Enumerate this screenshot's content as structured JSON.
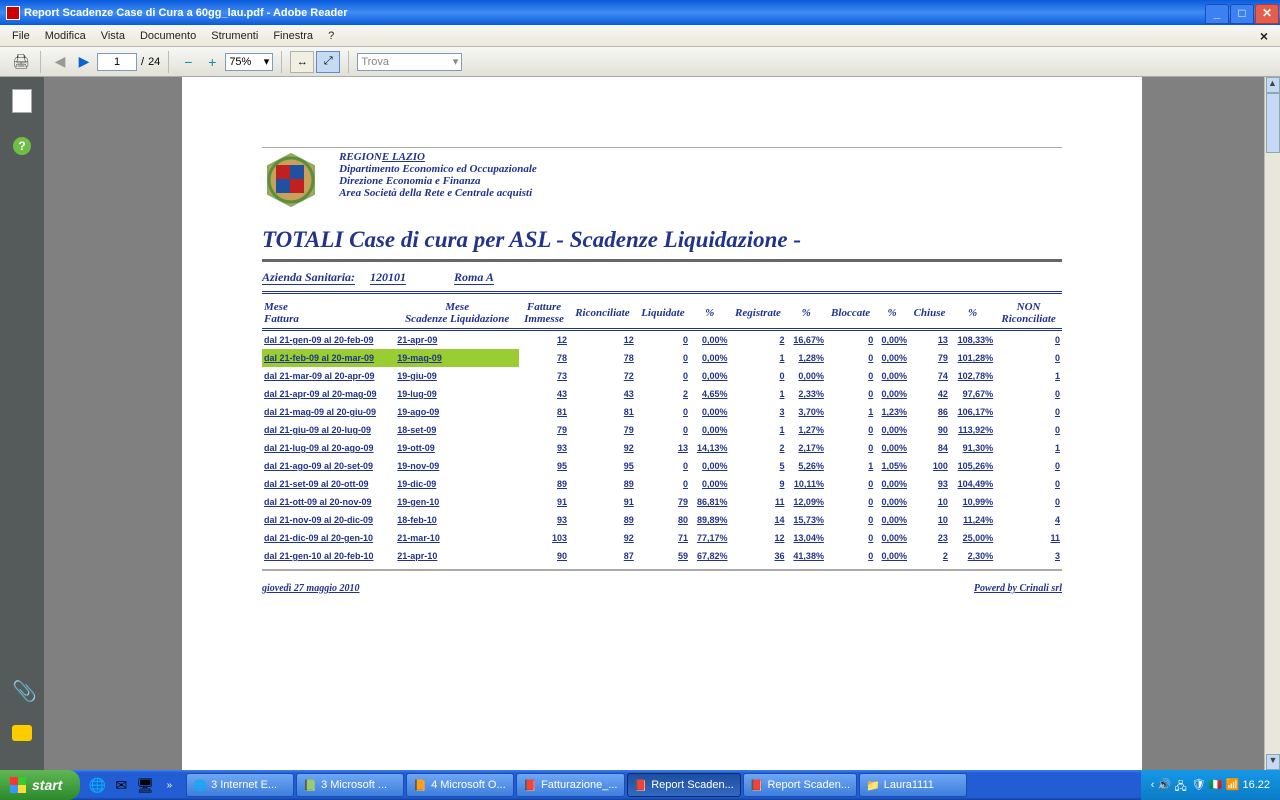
{
  "window": {
    "title": "Report Scadenze Case di Cura a 60gg_lau.pdf - Adobe Reader"
  },
  "menu": {
    "file": "File",
    "edit": "Modifica",
    "view": "Vista",
    "document": "Documento",
    "tools": "Strumenti",
    "window": "Finestra",
    "help": "?"
  },
  "toolbar": {
    "page": "1",
    "of": "/",
    "total": "24",
    "zoom": "75%",
    "find": "Trova"
  },
  "header": {
    "region1": "REGION",
    "region2": "E LAZIO",
    "dip": "Dipartimento Economico ed Occupazionale",
    "dir": "Direzione Economia e Finanza",
    "area": "Area Società della Rete e Centrale acquisti"
  },
  "title": "TOTALI Case di cura per ASL  - Scadenze Liquidazione -",
  "info": {
    "azlbl": "Azienda Sanitaria:",
    "code": "120101",
    "name": "Roma A"
  },
  "columns": [
    "Mese Fattura",
    "Mese Scadenze Liquidazione",
    "Fatture Immesse",
    "Riconciliate",
    "Liquidate",
    "%",
    "Registrate",
    "%",
    "Bloccate",
    "%",
    "Chiuse",
    "%",
    "NON Riconciliate"
  ],
  "rows": [
    {
      "hl": false,
      "c": [
        "dal 21-gen-09 al 20-feb-09",
        "21-apr-09",
        "12",
        "12",
        "0",
        "0,00%",
        "2",
        "16,67%",
        "0",
        "0,00%",
        "13",
        "108,33%",
        "0"
      ]
    },
    {
      "hl": true,
      "c": [
        "dal 21-feb-09 al 20-mar-09",
        "19-mag-09",
        "78",
        "78",
        "0",
        "0,00%",
        "1",
        "1,28%",
        "0",
        "0,00%",
        "79",
        "101,28%",
        "0"
      ]
    },
    {
      "hl": false,
      "c": [
        "dal 21-mar-09 al 20-apr-09",
        "19-giu-09",
        "73",
        "72",
        "0",
        "0,00%",
        "0",
        "0,00%",
        "0",
        "0,00%",
        "74",
        "102,78%",
        "1"
      ]
    },
    {
      "hl": false,
      "c": [
        "dal 21-apr-09 al 20-mag-09",
        "19-lug-09",
        "43",
        "43",
        "2",
        "4,65%",
        "1",
        "2,33%",
        "0",
        "0,00%",
        "42",
        "97,67%",
        "0"
      ]
    },
    {
      "hl": false,
      "c": [
        "dal 21-mag-09 al 20-giu-09",
        "19-ago-09",
        "81",
        "81",
        "0",
        "0,00%",
        "3",
        "3,70%",
        "1",
        "1,23%",
        "86",
        "106,17%",
        "0"
      ]
    },
    {
      "hl": false,
      "c": [
        "dal 21-giu-09 al 20-lug-09",
        "18-set-09",
        "79",
        "79",
        "0",
        "0,00%",
        "1",
        "1,27%",
        "0",
        "0,00%",
        "90",
        "113,92%",
        "0"
      ]
    },
    {
      "hl": false,
      "c": [
        "dal 21-lug-09 al 20-ago-09",
        "19-ott-09",
        "93",
        "92",
        "13",
        "14,13%",
        "2",
        "2,17%",
        "0",
        "0,00%",
        "84",
        "91,30%",
        "1"
      ]
    },
    {
      "hl": false,
      "c": [
        "dal 21-ago-09 al 20-set-09",
        "19-nov-09",
        "95",
        "95",
        "0",
        "0,00%",
        "5",
        "5,26%",
        "1",
        "1,05%",
        "100",
        "105,26%",
        "0"
      ]
    },
    {
      "hl": false,
      "c": [
        "dal 21-set-09 al 20-ott-09",
        "19-dic-09",
        "89",
        "89",
        "0",
        "0,00%",
        "9",
        "10,11%",
        "0",
        "0,00%",
        "93",
        "104,49%",
        "0"
      ]
    },
    {
      "hl": false,
      "c": [
        "dal 21-ott-09 al 20-nov-09",
        "19-gen-10",
        "91",
        "91",
        "79",
        "86,81%",
        "11",
        "12,09%",
        "0",
        "0,00%",
        "10",
        "10,99%",
        "0"
      ]
    },
    {
      "hl": false,
      "c": [
        "dal 21-nov-09 al 20-dic-09",
        "18-feb-10",
        "93",
        "89",
        "80",
        "89,89%",
        "14",
        "15,73%",
        "0",
        "0,00%",
        "10",
        "11,24%",
        "4"
      ]
    },
    {
      "hl": false,
      "c": [
        "dal 21-dic-09 al 20-gen-10",
        "21-mar-10",
        "103",
        "92",
        "71",
        "77,17%",
        "12",
        "13,04%",
        "0",
        "0,00%",
        "23",
        "25,00%",
        "11"
      ]
    },
    {
      "hl": false,
      "c": [
        "dal 21-gen-10 al 20-feb-10",
        "21-apr-10",
        "90",
        "87",
        "59",
        "67,82%",
        "36",
        "41,38%",
        "0",
        "0,00%",
        "2",
        "2,30%",
        "3"
      ]
    }
  ],
  "footer": {
    "date": "giovedì 27 maggio 2010",
    "powered": "Powerd by Crinali srl"
  },
  "taskbar": {
    "start": "start",
    "tasks": [
      {
        "icon": "🌐",
        "label": "3 Internet E..."
      },
      {
        "icon": "📗",
        "label": "3 Microsoft ..."
      },
      {
        "icon": "📙",
        "label": "4 Microsoft O..."
      },
      {
        "icon": "📕",
        "label": "Fatturazione_..."
      },
      {
        "icon": "📕",
        "label": "Report Scaden...",
        "active": true
      },
      {
        "icon": "📕",
        "label": "Report Scaden..."
      },
      {
        "icon": "📁",
        "label": "Laura1111"
      }
    ],
    "time": "16.22"
  }
}
